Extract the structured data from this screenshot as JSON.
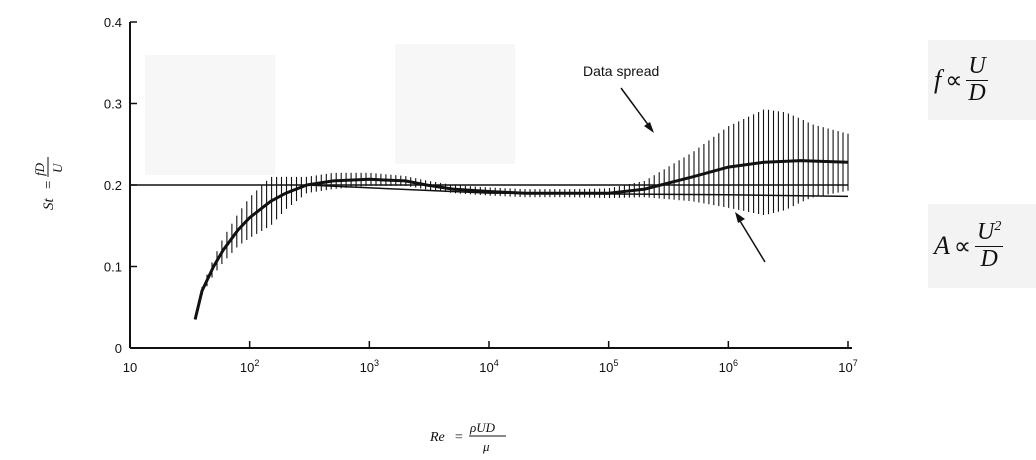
{
  "chart_data": {
    "type": "line",
    "x_scale": "log",
    "xlim": [
      10,
      10000000
    ],
    "ylim": [
      0,
      0.4
    ],
    "x_ticks": [
      {
        "base": "10",
        "exp": ""
      },
      {
        "base": "10",
        "exp": "2"
      },
      {
        "base": "10",
        "exp": "3"
      },
      {
        "base": "10",
        "exp": "4"
      },
      {
        "base": "10",
        "exp": "5"
      },
      {
        "base": "10",
        "exp": "6"
      },
      {
        "base": "10",
        "exp": "7"
      }
    ],
    "y_ticks": [
      "0",
      "0.1",
      "0.2",
      "0.3",
      "0.4"
    ],
    "y_tick_values": [
      0,
      0.1,
      0.2,
      0.3,
      0.4
    ],
    "xlabel": {
      "lhs": "Re",
      "eq": "=",
      "num": "ρUD",
      "den": "μ"
    },
    "ylabel": {
      "lhs": "St",
      "eq": "=",
      "num": "fD",
      "den": "U"
    },
    "grid": false,
    "reference_line": {
      "y": 0.2
    },
    "annotation": "Data spread",
    "series": [
      {
        "x": [
          35,
          40,
          50,
          60,
          80,
          100,
          150,
          200,
          300,
          500,
          1000,
          2000,
          3000,
          5000,
          10000,
          20000,
          50000,
          100000,
          200000,
          500000,
          1000000,
          2000000,
          4000000,
          10000000
        ],
        "y": [
          0.035,
          0.07,
          0.1,
          0.12,
          0.145,
          0.16,
          0.18,
          0.19,
          0.2,
          0.205,
          0.207,
          0.205,
          0.2,
          0.195,
          0.192,
          0.19,
          0.19,
          0.19,
          0.195,
          0.21,
          0.222,
          0.228,
          0.23,
          0.228
        ]
      }
    ],
    "spread": {
      "x": [
        40,
        50,
        60,
        80,
        100,
        150,
        200,
        300,
        500,
        1000,
        2000,
        5000,
        10000,
        50000,
        100000,
        200000,
        500000,
        1000000,
        2000000,
        3000000,
        5000000,
        10000000
      ],
      "half_width": [
        0.005,
        0.01,
        0.015,
        0.02,
        0.025,
        0.03,
        0.02,
        0.01,
        0.01,
        0.008,
        0.006,
        0.005,
        0.005,
        0.005,
        0.006,
        0.01,
        0.03,
        0.05,
        0.065,
        0.06,
        0.045,
        0.035
      ]
    },
    "envelope_lower": {
      "x": [
        300,
        10000,
        1000000,
        10000000
      ],
      "y": [
        0.2,
        0.19,
        0.188,
        0.186
      ]
    }
  },
  "formulas": [
    {
      "lhs": "f",
      "op": "∝",
      "num": "U",
      "den": "D"
    },
    {
      "lhs": "A",
      "op": "∝",
      "num": "U",
      "sup": "2",
      "den": "D"
    }
  ]
}
